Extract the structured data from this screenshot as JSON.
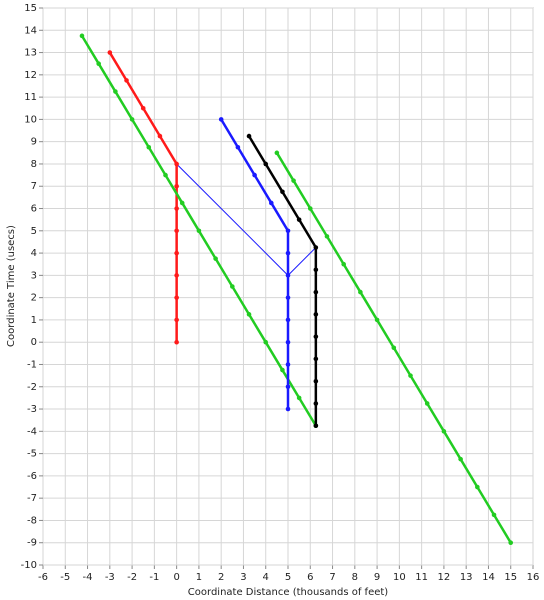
{
  "chart_data": {
    "type": "line",
    "xlabel": "Coordinate Distance (thousands of feet)",
    "ylabel": "Coordinate Time (usecs)",
    "xlim": [
      -6,
      16
    ],
    "xticks": [
      -6,
      -5,
      -4,
      -3,
      -2,
      -1,
      0,
      1,
      2,
      3,
      4,
      5,
      6,
      7,
      8,
      9,
      10,
      11,
      12,
      13,
      14,
      15,
      16
    ],
    "ylim": [
      -10,
      15
    ],
    "yticks": [
      -10,
      -9,
      -8,
      -7,
      -6,
      -5,
      -4,
      -3,
      -2,
      -1,
      0,
      1,
      2,
      3,
      4,
      5,
      6,
      7,
      8,
      9,
      10,
      11,
      12,
      13,
      14,
      15
    ],
    "grid": true,
    "series": [
      {
        "color": "#1a1aff",
        "width": 1,
        "markers": false,
        "x": [
          0,
          5,
          6.25
        ],
        "values": [
          8,
          3,
          4.25
        ]
      },
      {
        "color": "#ff1a1a",
        "width": 2.5,
        "markers": true,
        "x": [
          -3,
          -2.25,
          -1.5,
          -0.75,
          0,
          0,
          0,
          0,
          0,
          0,
          0,
          0,
          0
        ],
        "values": [
          13,
          11.75,
          10.5,
          9.25,
          8,
          7,
          6,
          5,
          4,
          3,
          2,
          1,
          0
        ]
      },
      {
        "color": "#22cc22",
        "width": 2.5,
        "markers": true,
        "x": [
          -4.25,
          -3.5,
          -2.75,
          -2,
          -1.25,
          -0.5,
          0.25,
          1,
          1.75,
          2.5,
          3.25,
          4,
          4.75,
          5.5,
          6.25
        ],
        "values": [
          13.75,
          12.5,
          11.25,
          10,
          8.75,
          7.5,
          6.25,
          5,
          3.75,
          2.5,
          1.25,
          0,
          -1.25,
          -2.5,
          -3.75
        ]
      },
      {
        "color": "#22cc22",
        "width": 2.5,
        "markers": true,
        "x": [
          4.5,
          5.25,
          6,
          6.75,
          7.5,
          8.25,
          9,
          9.75,
          10.5,
          11.25,
          12,
          12.75,
          13.5,
          14.25,
          15
        ],
        "values": [
          8.5,
          7.25,
          6,
          4.75,
          3.5,
          2.25,
          1,
          -0.25,
          -1.5,
          -2.75,
          -4,
          -5.25,
          -6.5,
          -7.75,
          -9
        ]
      },
      {
        "color": "#1a1aff",
        "width": 2.5,
        "markers": true,
        "x": [
          2,
          2.75,
          3.5,
          4.25,
          5,
          5,
          5,
          5,
          5,
          5,
          5,
          5,
          5
        ],
        "values": [
          10,
          8.75,
          7.5,
          6.25,
          5,
          4,
          3,
          2,
          1,
          0,
          -1,
          -2,
          -3
        ]
      },
      {
        "color": "#000000",
        "width": 2.5,
        "markers": true,
        "x": [
          3.25,
          4,
          4.75,
          5.5,
          6.25,
          6.25,
          6.25,
          6.25,
          6.25,
          6.25,
          6.25,
          6.25,
          6.25
        ],
        "values": [
          9.25,
          8,
          6.75,
          5.5,
          4.25,
          3.25,
          2.25,
          1.25,
          0.25,
          -0.75,
          -1.75,
          -2.75,
          -3.75
        ]
      }
    ]
  }
}
